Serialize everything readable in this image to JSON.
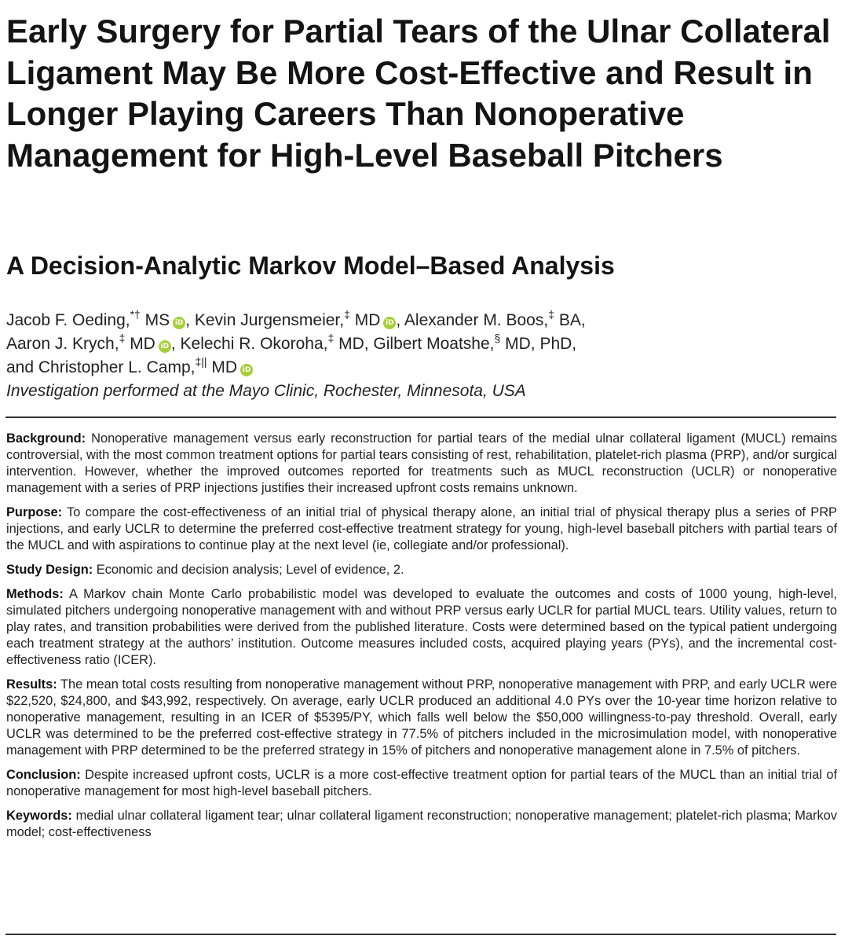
{
  "title": "Early Surgery for Partial Tears of the Ulnar Collateral Ligament May Be More Cost-Effective and Result in Longer Playing Careers Than Nonoperative Management for High-Level Baseball Pitchers",
  "subtitle": "A Decision-Analytic Markov Model–Based Analysis",
  "authors": {
    "a1_name": "Jacob F. Oeding,",
    "a1_sup": "*†",
    "a1_deg": " MS",
    "a2_name": ", Kevin Jurgensmeier,",
    "a2_sup": "‡",
    "a2_deg": " MD",
    "a3_name": ", Alexander M. Boos,",
    "a3_sup": "‡",
    "a3_deg": " BA,",
    "a4_name": "Aaron J. Krych,",
    "a4_sup": "‡",
    "a4_deg": " MD",
    "a5_name": ", Kelechi R. Okoroha,",
    "a5_sup": "‡",
    "a5_deg": " MD, Gilbert Moatshe,",
    "a6_sup": "§",
    "a6_deg": " MD, PhD,",
    "a7_name": "and Christopher L. Camp,",
    "a7_sup": "‡||",
    "a7_deg": " MD",
    "orcid_label": "iD"
  },
  "affiliation": "Investigation performed at the Mayo Clinic, Rochester, Minnesota, USA",
  "abstract": {
    "background_label": "Background:",
    "background": " Nonoperative management versus early reconstruction for partial tears of the medial ulnar collateral ligament (MUCL) remains controversial, with the most common treatment options for partial tears consisting of rest, rehabilitation, platelet-rich plasma (PRP), and/or surgical intervention. However, whether the improved outcomes reported for treatments such as MUCL reconstruction (UCLR) or nonoperative management with a series of PRP injections justifies their increased upfront costs remains unknown.",
    "purpose_label": "Purpose:",
    "purpose": " To compare the cost-effectiveness of an initial trial of physical therapy alone, an initial trial of physical therapy plus a series of PRP injections, and early UCLR to determine the preferred cost-effective treatment strategy for young, high-level baseball pitchers with partial tears of the MUCL and with aspirations to continue play at the next level (ie, collegiate and/or professional).",
    "design_label": "Study Design:",
    "design": " Economic and decision analysis; Level of evidence, 2.",
    "methods_label": "Methods:",
    "methods": " A Markov chain Monte Carlo probabilistic model was developed to evaluate the outcomes and costs of 1000 young, high-level, simulated pitchers undergoing nonoperative management with and without PRP versus early UCLR for partial MUCL tears. Utility values, return to play rates, and transition probabilities were derived from the published literature. Costs were determined based on the typical patient undergoing each treatment strategy at the authors’ institution. Outcome measures included costs, acquired playing years (PYs), and the incremental cost-effectiveness ratio (ICER).",
    "results_label": "Results:",
    "results": " The mean total costs resulting from nonoperative management without PRP, nonoperative management with PRP, and early UCLR were $22,520, $24,800, and $43,992, respectively. On average, early UCLR produced an additional 4.0 PYs over the 10-year time horizon relative to nonoperative management, resulting in an ICER of $5395/PY, which falls well below the $50,000 willingness-to-pay threshold. Overall, early UCLR was determined to be the preferred cost-effective strategy in 77.5% of pitchers included in the microsimulation model, with nonoperative management with PRP determined to be the preferred strategy in 15% of pitchers and nonoperative management alone in 7.5% of pitchers.",
    "conclusion_label": "Conclusion:",
    "conclusion": " Despite increased upfront costs, UCLR is a more cost-effective treatment option for partial tears of the MUCL than an initial trial of nonoperative management for most high-level baseball pitchers.",
    "keywords_label": "Keywords:",
    "keywords": " medial ulnar collateral ligament tear; ulnar collateral ligament reconstruction; nonoperative management; platelet-rich plasma; Markov model; cost-effectiveness"
  }
}
